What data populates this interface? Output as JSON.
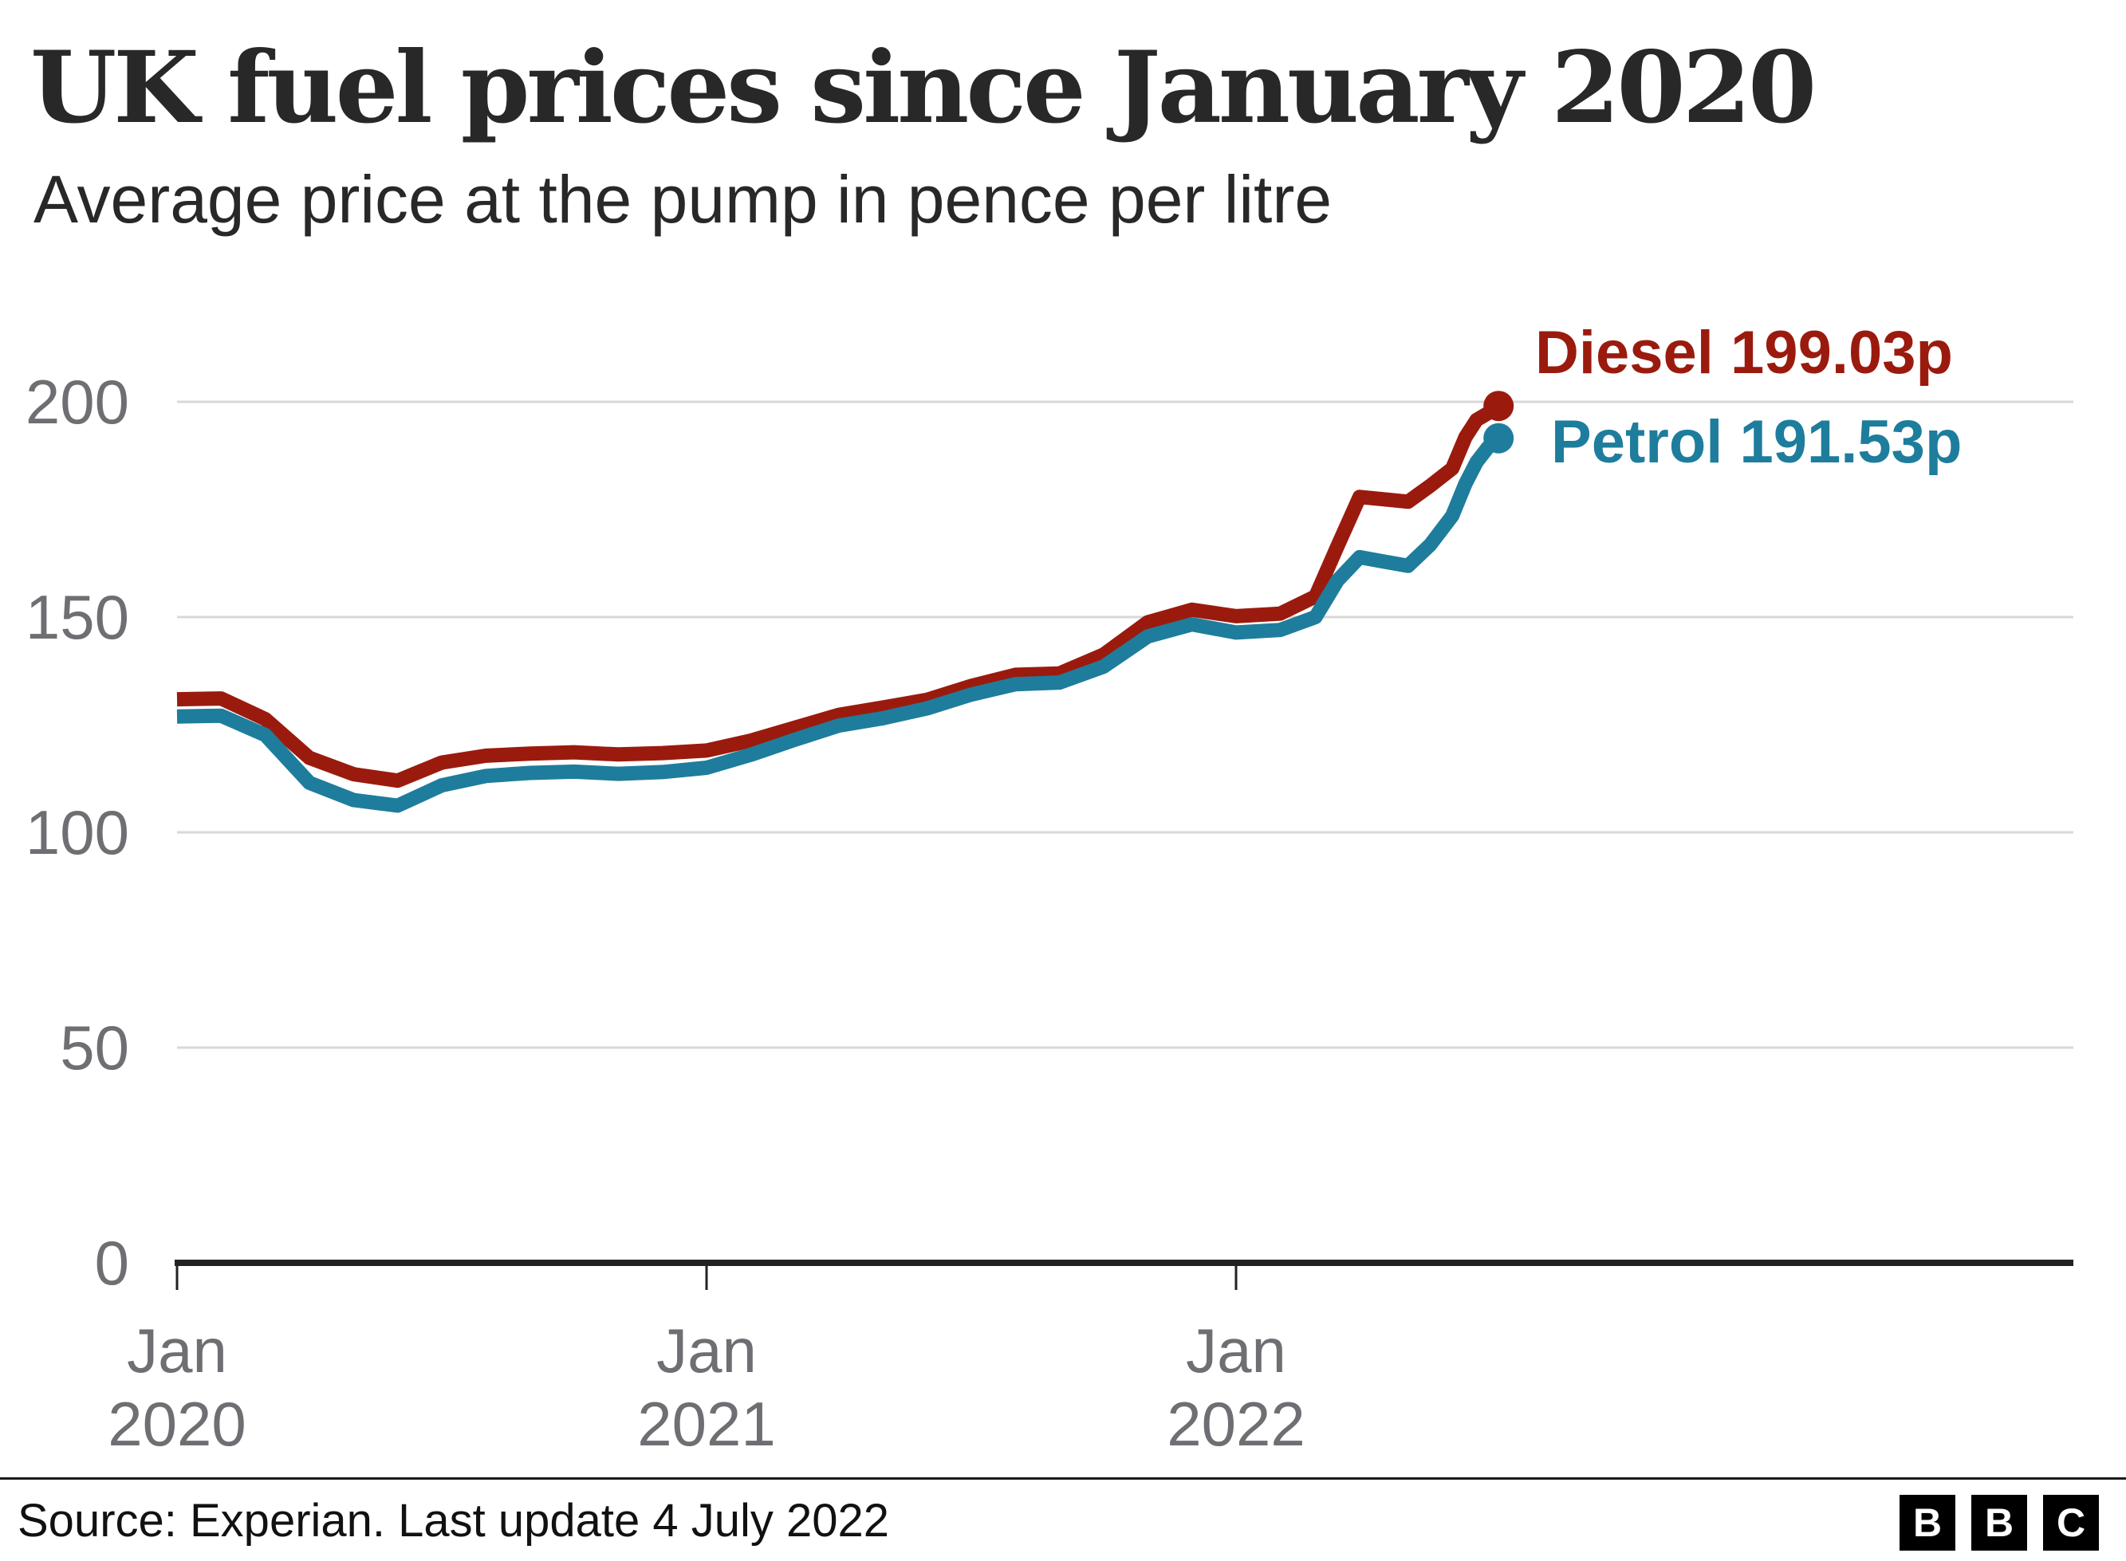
{
  "chart_data": {
    "type": "line",
    "title": "UK fuel prices since January 2020",
    "subtitle": "Average price at the pump in pence per litre",
    "x_unit": "months since Jan 2020",
    "x": [
      0,
      1,
      2,
      3,
      4,
      5,
      6,
      7,
      8,
      9,
      10,
      11,
      12,
      13,
      14,
      15,
      16,
      17,
      18,
      19,
      20,
      21,
      22,
      23,
      24,
      25,
      25.8,
      26.3,
      26.8,
      27.4,
      27.9,
      28.4,
      28.9,
      29.2,
      29.45,
      29.7,
      29.95
    ],
    "series": [
      {
        "name": "Diesel",
        "color": "#9a1b0e",
        "latest_value": 199.03,
        "label": "Diesel 199.03p",
        "values": [
          130.9,
          131.1,
          126.3,
          117.3,
          113.5,
          112.0,
          116.2,
          117.8,
          118.3,
          118.6,
          118.1,
          118.4,
          119.0,
          121.3,
          124.3,
          127.3,
          129.0,
          130.8,
          134.0,
          136.6,
          136.9,
          141.3,
          148.8,
          151.7,
          150.2,
          150.8,
          154.8,
          166.5,
          177.9,
          177.3,
          176.8,
          180.5,
          184.5,
          191.8,
          195.8,
          197.3,
          199.03
        ]
      },
      {
        "name": "Petrol",
        "color": "#1e7d9c",
        "latest_value": 191.53,
        "label": "Petrol 191.53p",
        "values": [
          126.9,
          127.1,
          122.6,
          111.5,
          107.5,
          106.2,
          110.9,
          113.1,
          113.8,
          114.1,
          113.6,
          114.0,
          115.0,
          118.0,
          121.5,
          124.8,
          126.5,
          128.8,
          132.0,
          134.4,
          134.8,
          138.5,
          145.5,
          148.3,
          146.4,
          147.0,
          150.0,
          158.5,
          163.9,
          162.8,
          161.9,
          166.8,
          173.5,
          181.0,
          186.0,
          189.3,
          191.53
        ]
      }
    ],
    "ylim": [
      0,
      208
    ],
    "yticks": [
      0,
      50,
      100,
      150,
      200
    ],
    "xticks": [
      {
        "month": 0,
        "label_line1": "Jan",
        "label_line2": "2020"
      },
      {
        "month": 12,
        "label_line1": "Jan",
        "label_line2": "2021"
      },
      {
        "month": 24,
        "label_line1": "Jan",
        "label_line2": "2022"
      }
    ],
    "grid": "horizontal-only",
    "legend_position": "end-of-line"
  },
  "footer": {
    "source": "Source: Experian. Last update 4 July 2022",
    "logo_letters": [
      "B",
      "B",
      "C"
    ]
  },
  "colors": {
    "axis": "#222222",
    "gridline": "#d8d8d8",
    "tick_label": "#6e6e73",
    "heading_text": "#282828",
    "source_text": "#111111",
    "logo_bg": "#000000",
    "logo_text": "#ffffff",
    "background": "#ffffff"
  }
}
